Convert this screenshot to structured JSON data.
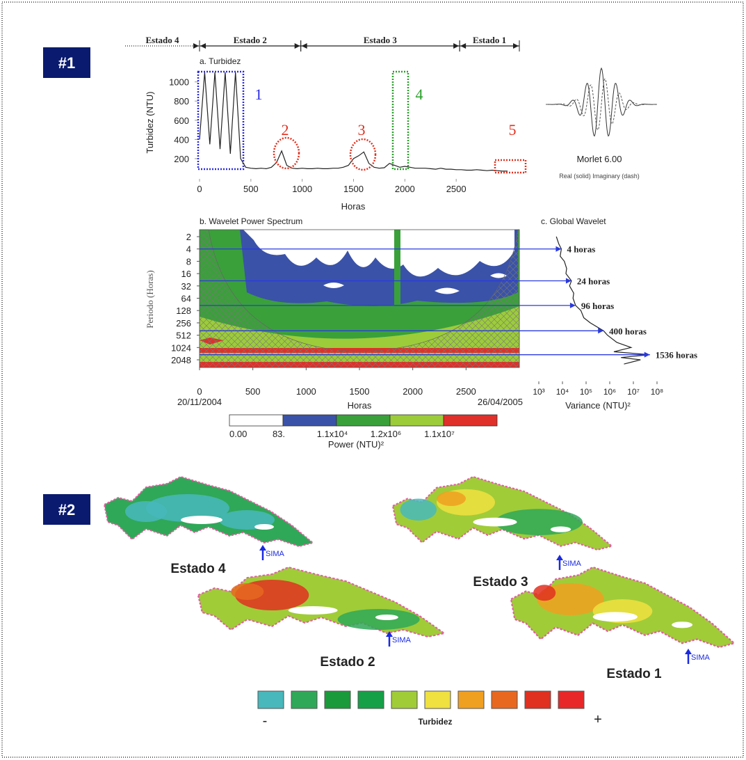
{
  "panels": [
    "#1",
    "#2"
  ],
  "timeline": {
    "states": [
      {
        "label": "Estado 4",
        "start": null,
        "end": 0
      },
      {
        "label": "Estado 2",
        "start": 0,
        "end": 950
      },
      {
        "label": "Estado 3",
        "start": 950,
        "end": 2440
      },
      {
        "label": "Estado 1",
        "start": 2440,
        "end": 3000
      }
    ]
  },
  "regions": [
    {
      "label": "1",
      "color": "#2a2adf"
    },
    {
      "label": "2",
      "color": "#e0301e"
    },
    {
      "label": "3",
      "color": "#e0301e"
    },
    {
      "label": "4",
      "color": "#2aa02a"
    },
    {
      "label": "5",
      "color": "#e0301e"
    }
  ],
  "morlet": {
    "title": "Morlet 6.00",
    "caption": "Real (solid)  Imaginary (dash)"
  },
  "chart_data": [
    {
      "type": "line",
      "title": "a. Turbidez",
      "xlabel": "Horas",
      "ylabel": "Turbidez (NTU)",
      "x": [
        0,
        50,
        100,
        150,
        200,
        250,
        300,
        350,
        400,
        450,
        500,
        550,
        600,
        650,
        700,
        750,
        800,
        850,
        900,
        950,
        1000,
        1050,
        1100,
        1150,
        1200,
        1250,
        1300,
        1350,
        1400,
        1450,
        1500,
        1550,
        1600,
        1650,
        1700,
        1750,
        1800,
        1850,
        1900,
        1950,
        2000,
        2050,
        2100,
        2150,
        2200,
        2250,
        2300,
        2350,
        2400,
        2450,
        2500,
        2550,
        2600,
        2650,
        2700,
        2750,
        2800,
        2850,
        2900,
        2950,
        3000
      ],
      "series": [
        {
          "name": "Turbidez",
          "color": "#222222",
          "values": [
            400,
            1100,
            350,
            1100,
            300,
            1100,
            250,
            1100,
            200,
            110,
            100,
            95,
            100,
            95,
            110,
            160,
            280,
            130,
            100,
            95,
            100,
            95,
            95,
            100,
            95,
            95,
            100,
            100,
            110,
            130,
            200,
            230,
            270,
            150,
            110,
            100,
            105,
            150,
            130,
            110,
            120,
            110,
            100,
            100,
            100,
            95,
            90,
            100,
            90,
            90,
            85,
            85,
            80,
            80,
            85,
            80,
            75,
            80,
            75,
            70,
            70
          ]
        }
      ],
      "xlim": [
        0,
        3000
      ],
      "xticks": [
        0,
        500,
        1000,
        1500,
        2000,
        2500
      ],
      "ylim": [
        0,
        1150
      ],
      "yticks": [
        200,
        400,
        600,
        800,
        1000
      ],
      "grid": false
    },
    {
      "type": "contour",
      "title": "b. Wavelet Power Spectrum",
      "xlabel": "Horas",
      "ylabel": "Periodo (Horas)",
      "start_date": "20/11/2004",
      "end_date": "26/04/2005",
      "xlim": [
        0,
        3000
      ],
      "xticks": [
        0,
        500,
        1000,
        1500,
        2000,
        2500
      ],
      "ylim": [
        1.35,
        3150
      ],
      "yticks": [
        2,
        4,
        8,
        16,
        32,
        64,
        128,
        256,
        512,
        1024,
        2048
      ],
      "log_y": true,
      "colorbar": {
        "label": "Power (NTU)²",
        "levels": [
          {
            "value": 0,
            "label": "0.00"
          },
          {
            "value": 83,
            "label": "83."
          },
          {
            "value": 11000,
            "label": "1.1x10⁴"
          },
          {
            "value": 1200000,
            "label": "1.2x10⁶"
          },
          {
            "value": 11000000,
            "label": "1.1x10⁷"
          }
        ],
        "colors": [
          "#ffffff",
          "#3a52a8",
          "#3aa03a",
          "#9ccc3a",
          "#e0302a"
        ]
      }
    },
    {
      "type": "line",
      "title": "c. Global Wavelet",
      "xlabel": "Variance (NTU)²",
      "x": [
        5500,
        7000,
        9000,
        8000,
        12000,
        15000,
        14000,
        24000,
        20000,
        30000,
        28000,
        36000,
        60000,
        80000,
        150000,
        550000,
        800000,
        2000000,
        8000000,
        1500000,
        50000000,
        3000000,
        20000000,
        4000000
      ],
      "series": [
        {
          "name": "Global Wavelet",
          "color": "#222222",
          "values": [
            2,
            3,
            4,
            6,
            8,
            12,
            16,
            24,
            32,
            48,
            64,
            96,
            128,
            192,
            256,
            400,
            512,
            768,
            1024,
            1300,
            1536,
            1800,
            2048,
            2600
          ]
        }
      ],
      "xlim": [
        1000,
        100000000
      ],
      "log_x": true,
      "xticks": [
        {
          "value": 1000,
          "label": "10³"
        },
        {
          "value": 10000,
          "label": "10⁴"
        },
        {
          "value": 100000,
          "label": "10⁵"
        },
        {
          "value": 1000000,
          "label": "10⁶"
        },
        {
          "value": 10000000,
          "label": "10⁷"
        },
        {
          "value": 100000000,
          "label": "10⁸"
        }
      ],
      "ylim": [
        1.35,
        3150
      ],
      "log_y": true,
      "arrow_color": "#2a3adf",
      "annotations": [
        {
          "label": "4 horas",
          "y": 4
        },
        {
          "label": "24 horas",
          "y": 24
        },
        {
          "label": "96 horas",
          "y": 96
        },
        {
          "label": "400 horas",
          "y": 400
        },
        {
          "label": "1536 horas",
          "y": 1536
        }
      ]
    }
  ],
  "maps": [
    {
      "label": "Estado 4",
      "station": "SIMA"
    },
    {
      "label": "Estado 3",
      "station": "SIMA"
    },
    {
      "label": "Estado 2",
      "station": "SIMA"
    },
    {
      "label": "Estado 1",
      "station": "SIMA"
    }
  ],
  "legend": {
    "title": "Turbidez",
    "low": "-",
    "high": "+",
    "colors": [
      "#48b8bc",
      "#2fa858",
      "#1a9a3a",
      "#15a048",
      "#a0cc38",
      "#f0e040",
      "#f0a020",
      "#e86820",
      "#e03020",
      "#e82828"
    ]
  }
}
